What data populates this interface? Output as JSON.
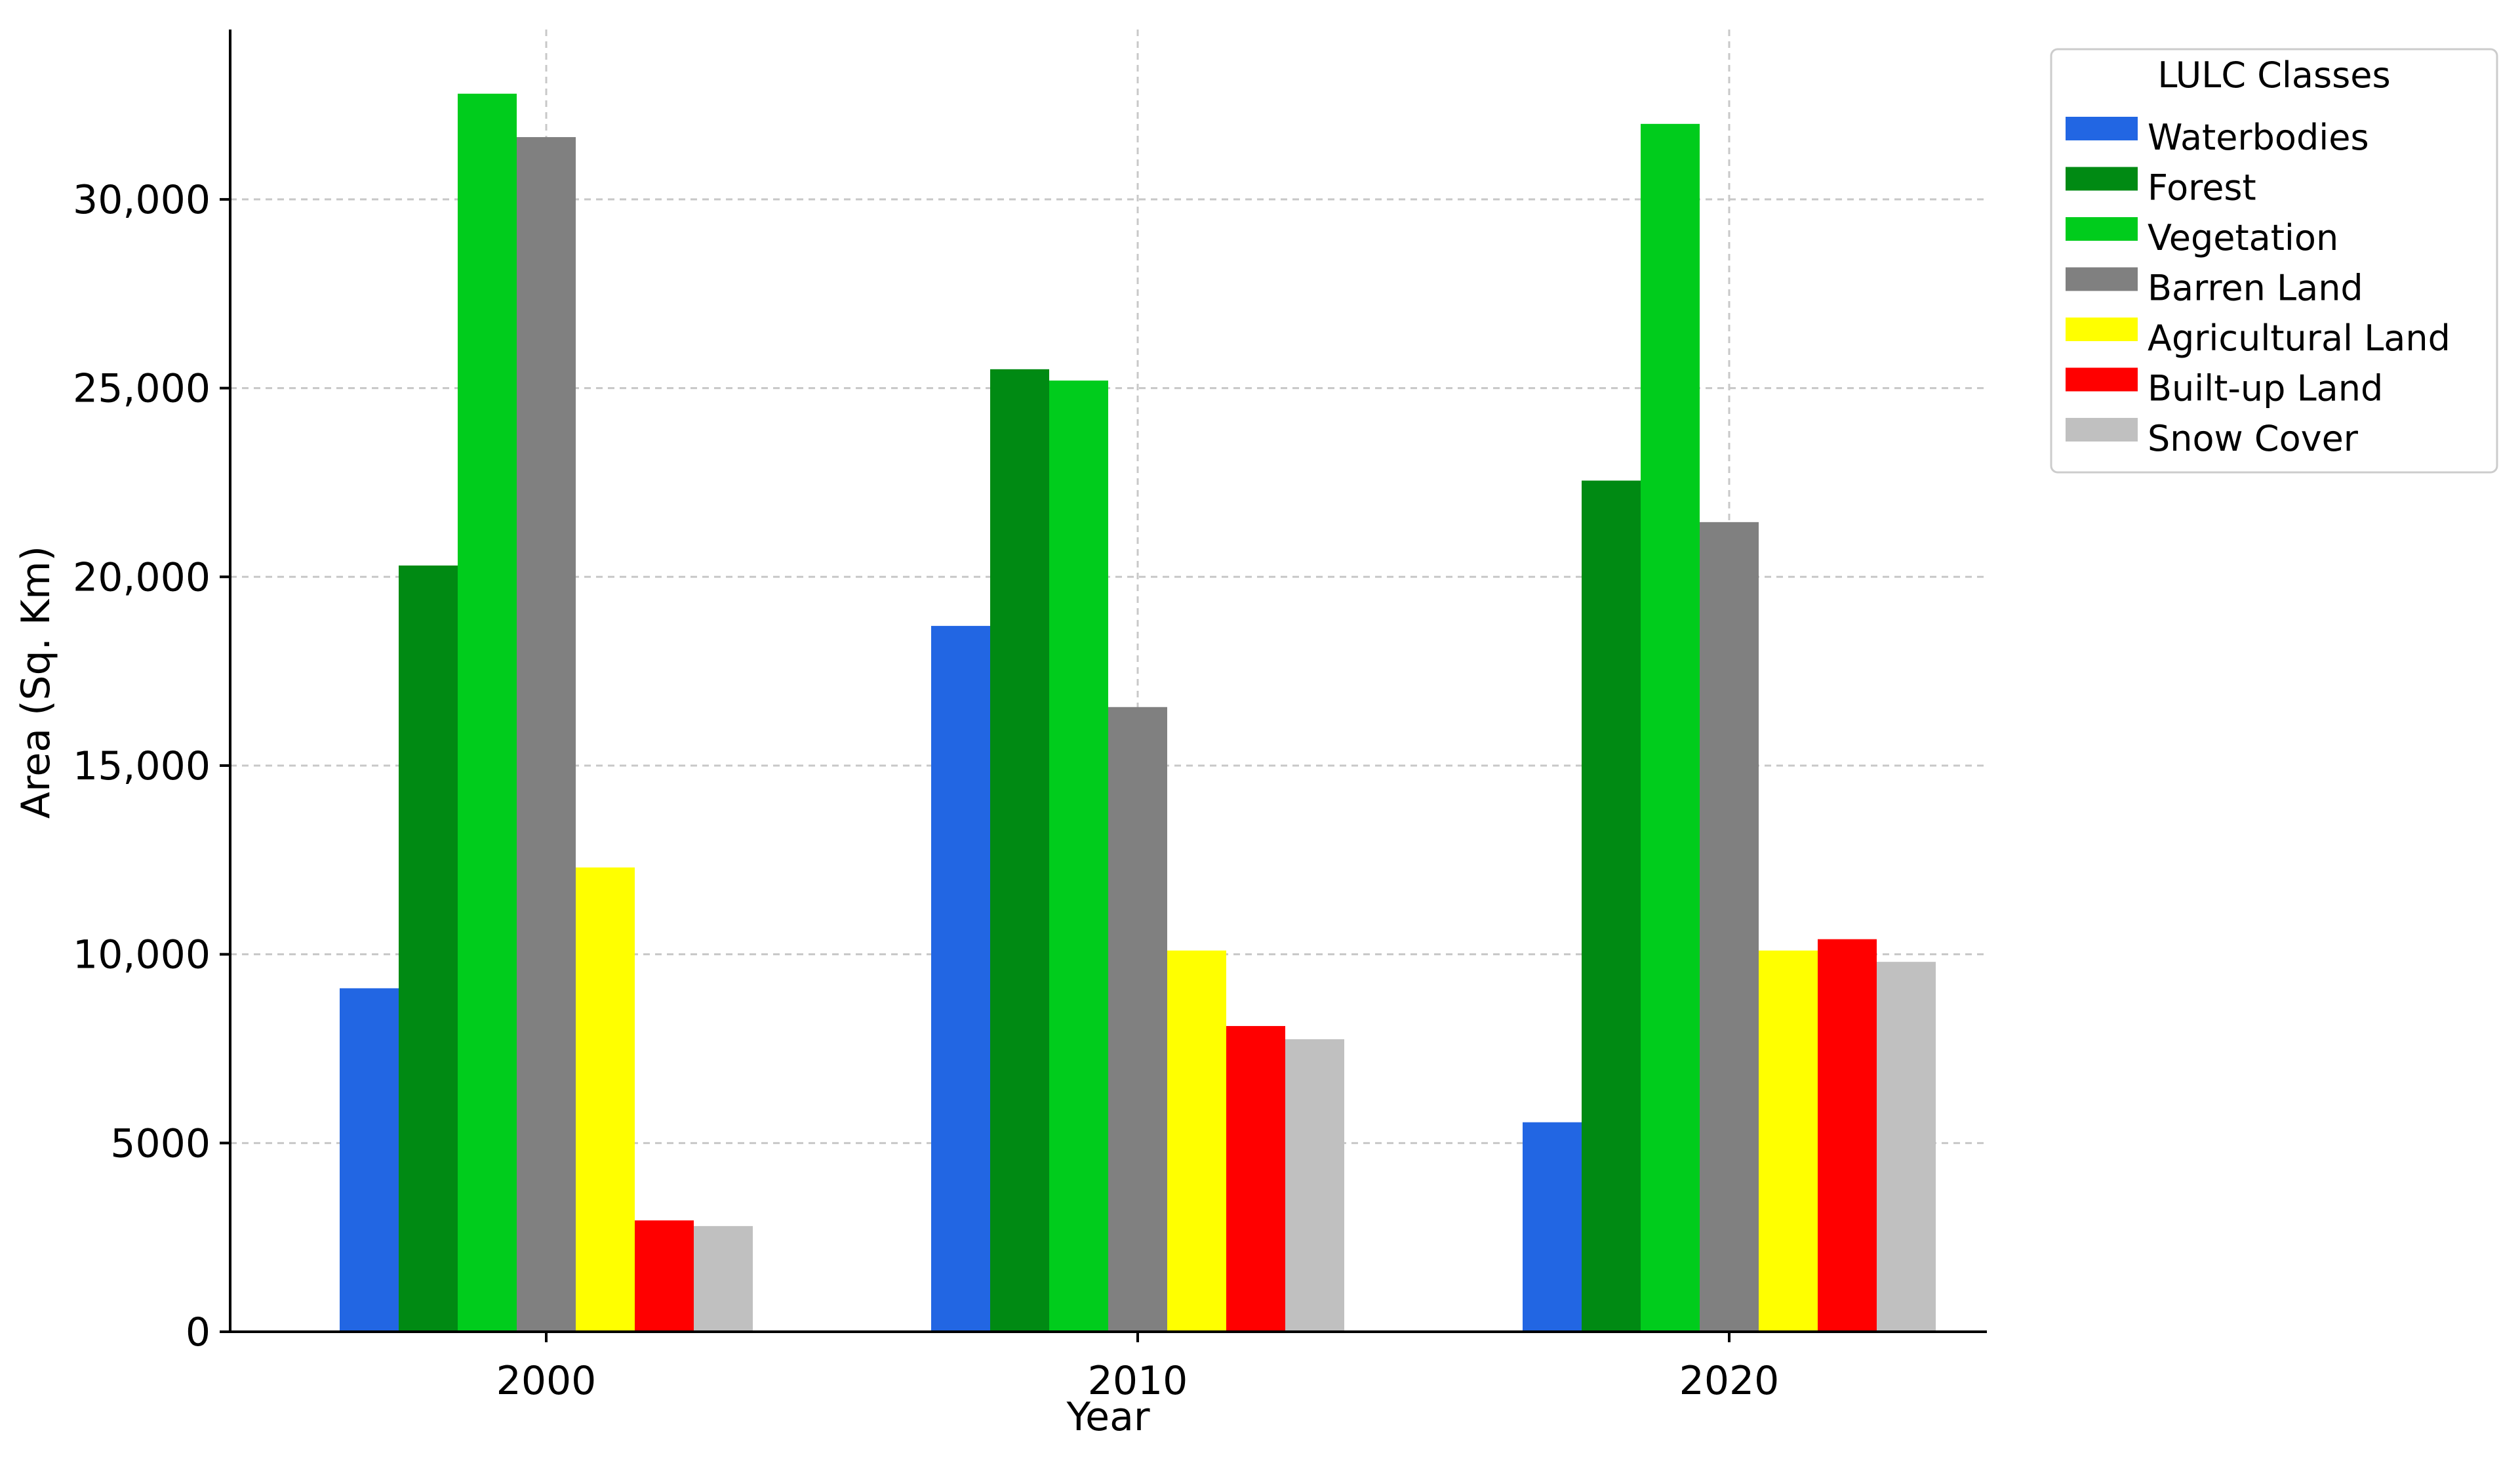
{
  "chart_data": {
    "type": "bar",
    "categories": [
      "2000",
      "2010",
      "2020"
    ],
    "xlabel": "Year",
    "ylabel": "Area (Sq. Km)",
    "ylim": [
      0,
      34500
    ],
    "yticks": [
      0,
      5000,
      10000,
      15000,
      20000,
      25000,
      30000
    ],
    "ytick_labels": [
      "0",
      "5000",
      "10,000",
      "15,000",
      "20,000",
      "25,000",
      "30,000"
    ],
    "grid": true,
    "legend": {
      "title": "LULC Classes",
      "placement": "outside-top-right"
    },
    "series": [
      {
        "name": "Waterbodies",
        "color": "#2266e3",
        "values": [
          9100,
          18700,
          5550
        ]
      },
      {
        "name": "Forest",
        "color": "#008a13",
        "values": [
          20300,
          25500,
          22550
        ]
      },
      {
        "name": "Vegetation",
        "color": "#00cc1c",
        "values": [
          32800,
          25200,
          32000
        ]
      },
      {
        "name": "Barren Land",
        "color": "#808080",
        "values": [
          31650,
          16550,
          21450
        ]
      },
      {
        "name": "Agricultural Land",
        "color": "#ffff00",
        "values": [
          12300,
          10100,
          10100
        ]
      },
      {
        "name": "Built-up Land",
        "color": "#ff0000",
        "values": [
          2950,
          8100,
          10400
        ]
      },
      {
        "name": "Snow Cover",
        "color": "#c0c0c0",
        "values": [
          2800,
          7750,
          9800
        ]
      }
    ]
  }
}
